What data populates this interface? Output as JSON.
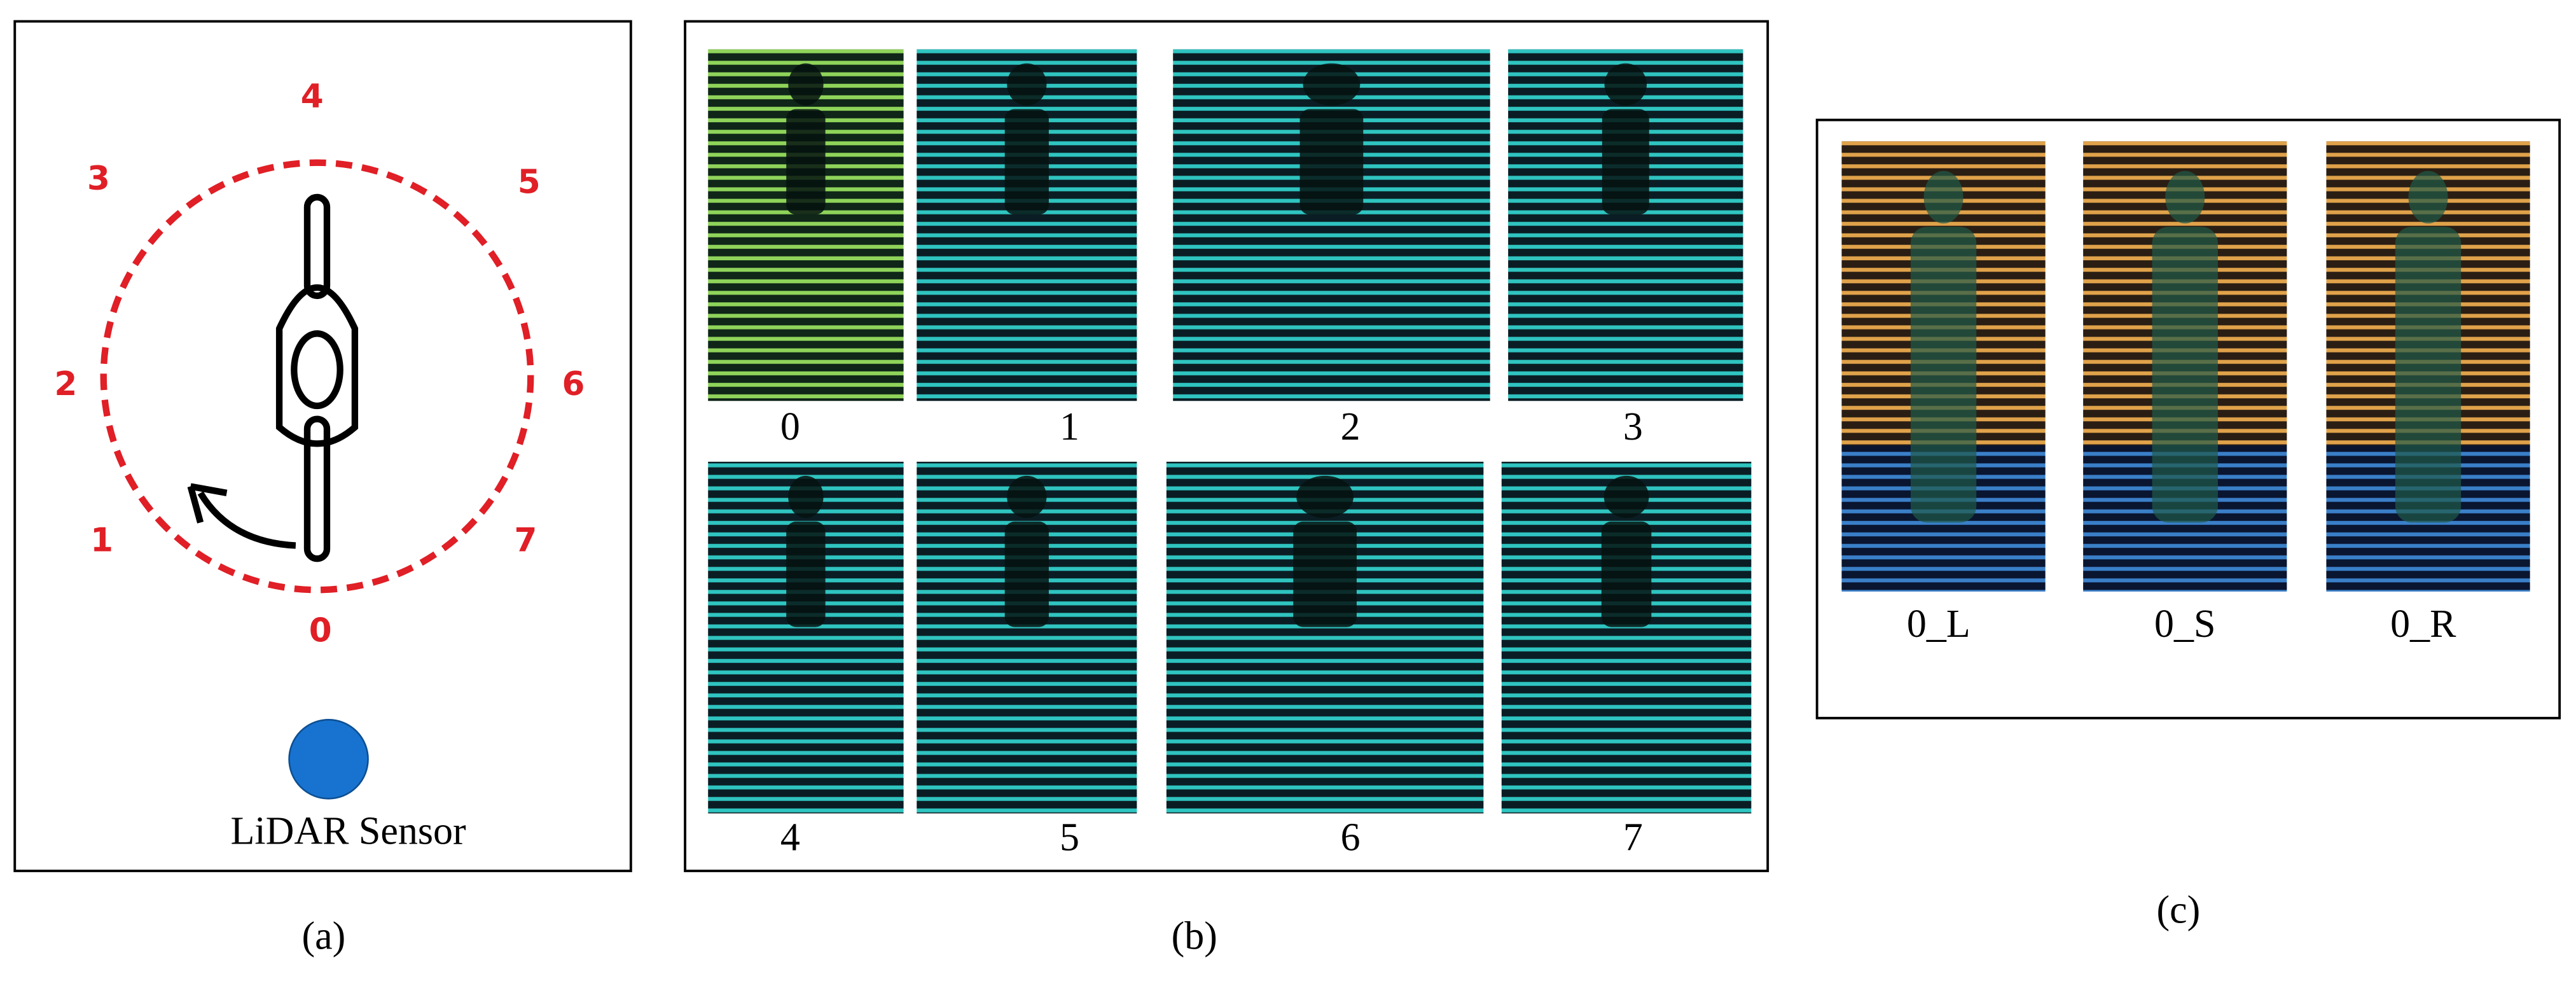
{
  "panel_a": {
    "directions": [
      "0",
      "1",
      "2",
      "3",
      "4",
      "5",
      "6",
      "7"
    ],
    "sensor_label": "LiDAR Sensor",
    "caption": "(a)"
  },
  "panel_b": {
    "images": [
      {
        "label": "0"
      },
      {
        "label": "1"
      },
      {
        "label": "2"
      },
      {
        "label": "3"
      },
      {
        "label": "4"
      },
      {
        "label": "5"
      },
      {
        "label": "6"
      },
      {
        "label": "7"
      }
    ],
    "caption": "(b)"
  },
  "panel_c": {
    "images": [
      {
        "label": "0_L"
      },
      {
        "label": "0_S"
      },
      {
        "label": "0_R"
      }
    ],
    "caption": "(c)"
  }
}
